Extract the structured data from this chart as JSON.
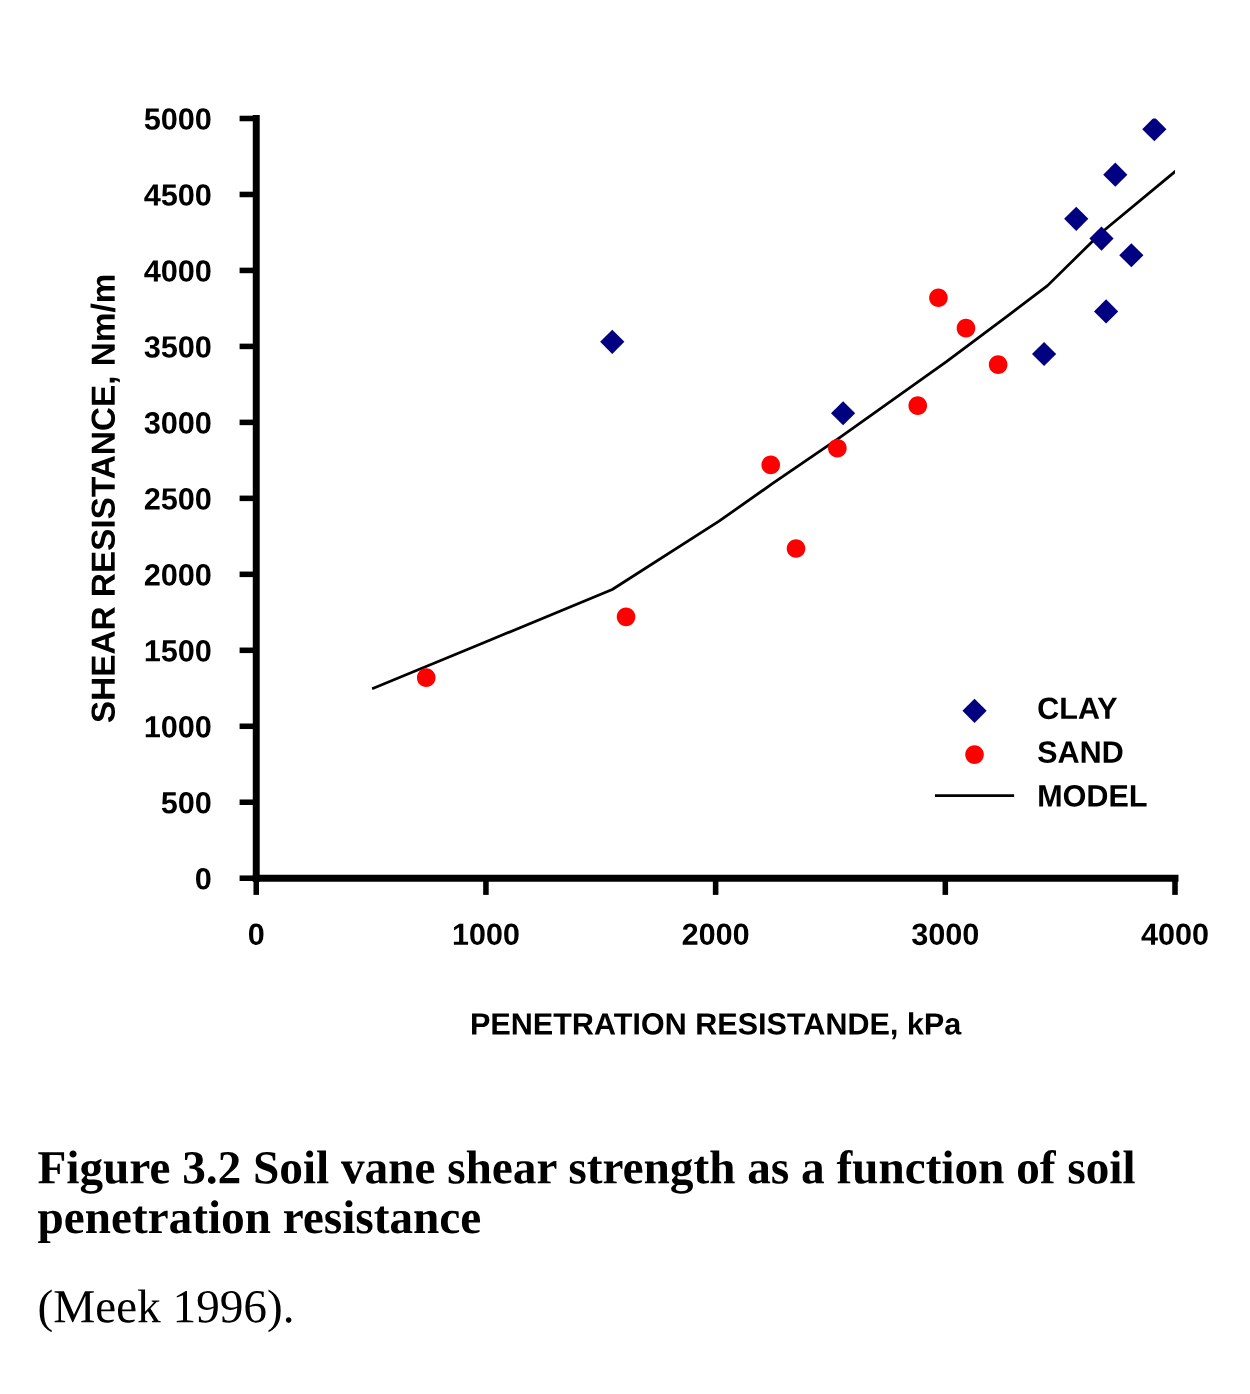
{
  "chart_data": {
    "type": "scatter",
    "xlabel": "PENETRATION RESISTANDE, kPa",
    "ylabel": "SHEAR RESISTANCE, Nm/m",
    "xlim": [
      0,
      4000
    ],
    "xticks": [
      0,
      1000,
      2000,
      3000,
      4000
    ],
    "ylim": [
      0,
      5000
    ],
    "yticks": [
      0,
      500,
      1000,
      1500,
      2000,
      2500,
      3000,
      3500,
      4000,
      4500,
      5000
    ],
    "grid": false,
    "legend": "bottom right",
    "series": [
      {
        "name": "CLAY",
        "marker": "diamond",
        "color": "#000080",
        "x": [
          1550,
          2555,
          3430,
          3570,
          3680,
          3700,
          3740,
          3810,
          3910
        ],
        "values": [
          3530,
          3060,
          3450,
          4340,
          4210,
          3730,
          4630,
          4100,
          4930
        ]
      },
      {
        "name": "SAND",
        "marker": "circle",
        "color": "#ff0000",
        "x": [
          740,
          1610,
          2240,
          2350,
          2530,
          2880,
          2970,
          3090,
          3230
        ],
        "values": [
          1320,
          1720,
          2720,
          2170,
          2830,
          3110,
          3820,
          3620,
          3380
        ]
      },
      {
        "name": "MODEL",
        "type": "line",
        "marker": "none",
        "line_style": "solid",
        "color": "#000000",
        "x": [
          510,
          990,
          1550,
          2015,
          2250,
          2540,
          3005,
          3270,
          3445,
          3680,
          4000
        ],
        "values": [
          1250,
          1550,
          1900,
          2350,
          2600,
          2900,
          3400,
          3700,
          3900,
          4250,
          4650
        ]
      }
    ],
    "annotations": [
      "Figure 3.2 Soil vane shear strength as a function of soil penetration resistance",
      "(Meek 1996)."
    ]
  }
}
